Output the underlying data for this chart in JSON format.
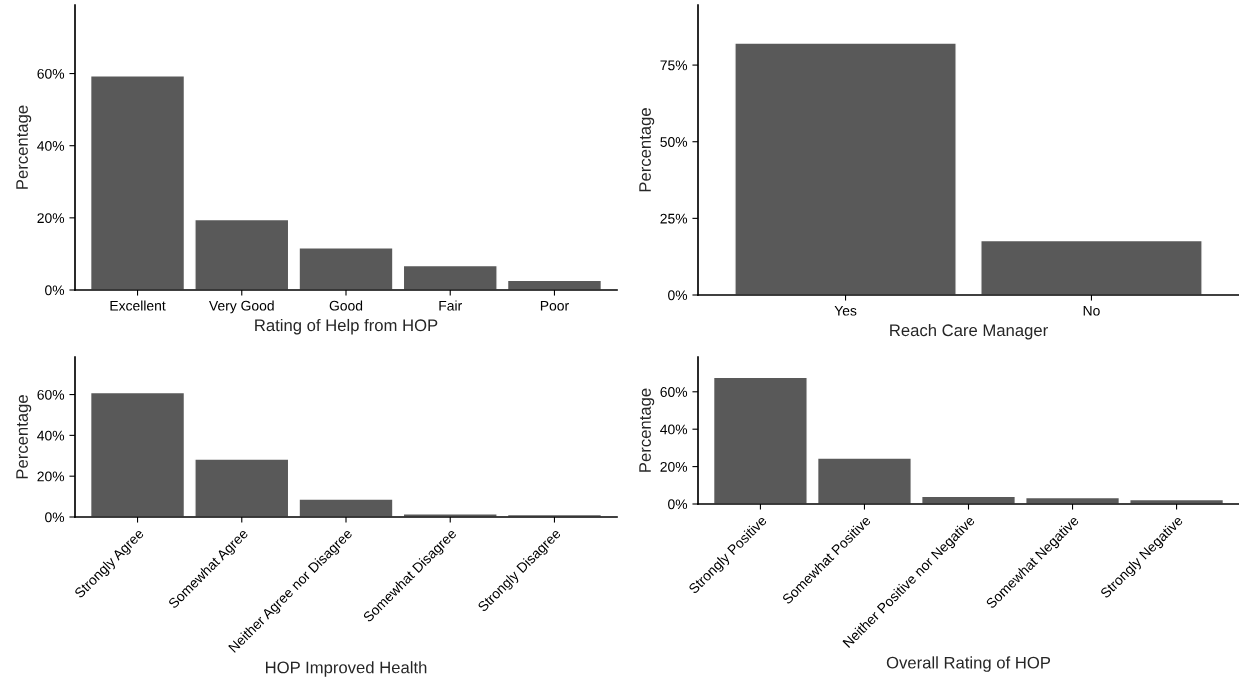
{
  "chart_data": [
    {
      "type": "bar",
      "xlabel": "Rating of Help from HOP",
      "ylabel": "Percentage",
      "categories": [
        "Excellent",
        "Very Good",
        "Good",
        "Fair",
        "Poor"
      ],
      "values": [
        59.4,
        19.5,
        11.7,
        6.8,
        2.7
      ],
      "color": "#595959",
      "ylim": [
        0,
        79
      ],
      "yticks": [
        {
          "value": 0,
          "label": "0%"
        },
        {
          "value": 20,
          "label": "20%"
        },
        {
          "value": 40,
          "label": "40%"
        },
        {
          "value": 60,
          "label": "60%"
        }
      ],
      "grid": false
    },
    {
      "type": "bar",
      "xlabel": "Reach Care Manager",
      "ylabel": "Percentage",
      "categories": [
        "Yes",
        "No"
      ],
      "values": [
        82.2,
        17.8
      ],
      "color": "#595959",
      "ylim": [
        0,
        94.6
      ],
      "yticks": [
        {
          "value": 0,
          "label": "0%"
        },
        {
          "value": 25,
          "label": "25%"
        },
        {
          "value": 50,
          "label": "50%"
        },
        {
          "value": 75,
          "label": "75%"
        }
      ],
      "grid": false
    },
    {
      "type": "bar",
      "xlabel": "HOP Improved Health",
      "ylabel": "Percentage",
      "categories": [
        "Strongly Agree",
        "Somewhat Agree",
        "Neither Agree nor Disagree",
        "Somewhat Disagree",
        "Strongly Disagree"
      ],
      "values": [
        61.0,
        28.4,
        8.8,
        1.6,
        1.2
      ],
      "color": "#595959",
      "ylim": [
        0,
        78.4
      ],
      "yticks": [
        {
          "value": 0,
          "label": "0%"
        },
        {
          "value": 20,
          "label": "20%"
        },
        {
          "value": 40,
          "label": "40%"
        },
        {
          "value": 60,
          "label": "60%"
        }
      ],
      "grid": false
    },
    {
      "type": "bar",
      "xlabel": "Overall Rating of HOP",
      "ylabel": "Percentage",
      "categories": [
        "Strongly Positive",
        "Somewhat Positive",
        "Neither Positive nor Negative",
        "Somewhat Negative",
        "Strongly Negative"
      ],
      "values": [
        67.7,
        24.6,
        4.1,
        3.4,
        2.4
      ],
      "color": "#595959",
      "ylim": [
        0,
        78.6
      ],
      "yticks": [
        {
          "value": 0,
          "label": "0%"
        },
        {
          "value": 20,
          "label": "20%"
        },
        {
          "value": 40,
          "label": "40%"
        },
        {
          "value": 60,
          "label": "60%"
        }
      ],
      "grid": false
    }
  ]
}
